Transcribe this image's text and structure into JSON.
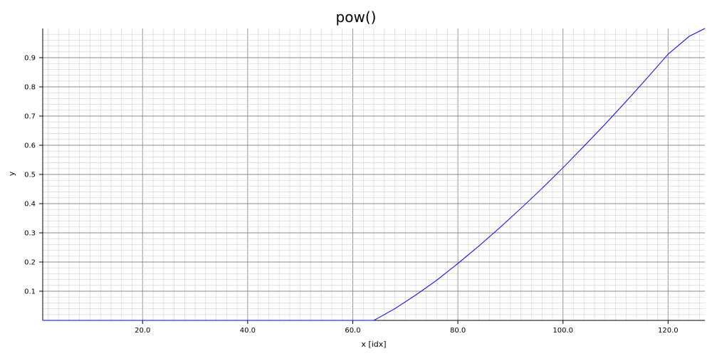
{
  "chart_data": {
    "type": "line",
    "title": "pow()",
    "xlabel": "x [idx]",
    "ylabel": "y",
    "xlim": [
      1,
      127
    ],
    "ylim": [
      0,
      1.0
    ],
    "grid": true,
    "x_ticks": [
      20,
      40,
      60,
      80,
      100,
      120
    ],
    "x_tick_labels": [
      "20.0",
      "40.0",
      "60.0",
      "80.0",
      "100.0",
      "120.0"
    ],
    "y_ticks": [
      0.1,
      0.2,
      0.3,
      0.4,
      0.5,
      0.6,
      0.7,
      0.8,
      0.9
    ],
    "y_tick_labels": [
      "0.1",
      "0.2",
      "0.3",
      "0.4",
      "0.5",
      "0.6",
      "0.7",
      "0.8",
      "0.9"
    ],
    "series": [
      {
        "color": "#0000ff",
        "points": [
          [
            1,
            0.0
          ],
          [
            64,
            0.0
          ],
          [
            68,
            0.04
          ],
          [
            72,
            0.087
          ],
          [
            76,
            0.138
          ],
          [
            80,
            0.195
          ],
          [
            84,
            0.255
          ],
          [
            88,
            0.318
          ],
          [
            92,
            0.384
          ],
          [
            96,
            0.452
          ],
          [
            100,
            0.523
          ],
          [
            104,
            0.597
          ],
          [
            108,
            0.672
          ],
          [
            112,
            0.75
          ],
          [
            116,
            0.83
          ],
          [
            120,
            0.912
          ],
          [
            124,
            0.973
          ],
          [
            127,
            1.0
          ]
        ]
      }
    ]
  }
}
